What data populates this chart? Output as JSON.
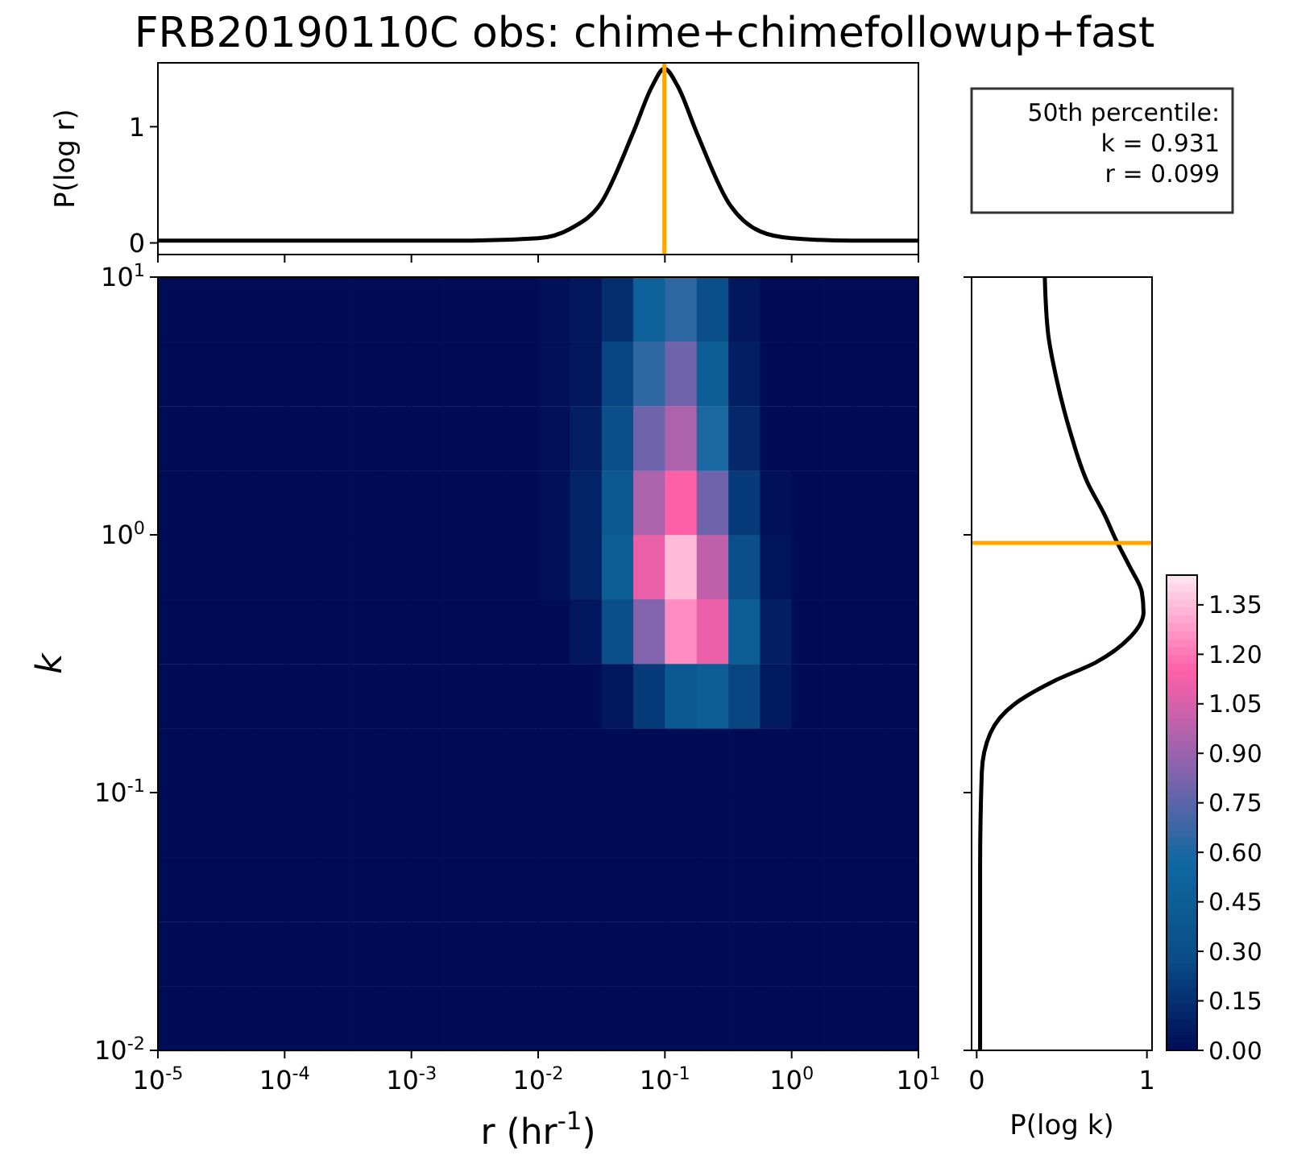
{
  "chart_data": [
    {
      "type": "line",
      "title": "FRB20190110C obs: chime+chimefollowup+fast",
      "ylabel": "P(log r)",
      "log": "x",
      "xlim": [
        1e-05,
        10
      ],
      "ylim": [
        -0.1,
        1.55
      ],
      "yticks": [
        0,
        1
      ],
      "xticks": [
        {
          "value": 1e-05,
          "label": null
        },
        {
          "value": 0.0001,
          "label": null
        },
        {
          "value": 0.001,
          "label": null
        },
        {
          "value": 0.01,
          "label": null
        },
        {
          "value": 0.1,
          "label": null
        },
        {
          "value": 1,
          "label": null
        },
        {
          "value": 10,
          "label": null
        }
      ],
      "tick_labels": "y",
      "x": [
        1e-05,
        0.0001,
        0.001,
        0.003,
        0.01,
        0.0178,
        0.0316,
        0.0562,
        0.0794,
        0.099,
        0.126,
        0.178,
        0.316,
        0.562,
        1,
        3,
        10
      ],
      "series": [
        {
          "color": "#000000",
          "values": [
            0.02,
            0.02,
            0.02,
            0.02,
            0.04,
            0.12,
            0.35,
            0.95,
            1.35,
            1.5,
            1.35,
            0.95,
            0.35,
            0.1,
            0.04,
            0.02,
            0.02
          ]
        }
      ],
      "ref_lines": [
        {
          "axis": "x",
          "value": 0.099,
          "color": "#ffa500"
        }
      ],
      "annotations": [
        "50th percentile:\nk = 0.931\nr = 0.099"
      ]
    },
    {
      "type": "scatter",
      "marker": "square",
      "xlabel": "r (hr$^{-1}$)",
      "ylabel": "k",
      "log": "xy",
      "xlim": [
        1e-05,
        10
      ],
      "ylim": [
        0.01,
        10
      ],
      "xticks": [
        {
          "value": 1e-05,
          "label": "10$^{-5}$"
        },
        {
          "value": 0.0001,
          "label": "10$^{-4}$"
        },
        {
          "value": 0.001,
          "label": "10$^{-3}$"
        },
        {
          "value": 0.01,
          "label": "10$^{-2}$"
        },
        {
          "value": 0.1,
          "label": "10$^{-1}$"
        },
        {
          "value": 1,
          "label": "10$^{0}$"
        },
        {
          "value": 10,
          "label": "10$^{1}$"
        }
      ],
      "yticks": [
        {
          "value": 0.01,
          "label": "10$^{-2}$"
        },
        {
          "value": 0.1,
          "label": "10$^{-1}$"
        },
        {
          "value": 1,
          "label": "10$^{0}$"
        },
        {
          "value": 10,
          "label": "10$^{1}$"
        }
      ],
      "x": [
        1.33e-05,
        2.37e-05,
        4.22e-05,
        7.5e-05,
        0.000133,
        0.000237,
        0.000422,
        0.00075,
        0.00133,
        0.00237,
        0.00422,
        0.0075,
        0.0133,
        0.0237,
        0.0422,
        0.075,
        0.133,
        0.237,
        0.422,
        0.75,
        1.33,
        2.37,
        4.22,
        7.5,
        1.33e-05,
        2.37e-05,
        4.22e-05,
        7.5e-05,
        0.000133,
        0.000237,
        0.000422,
        0.00075,
        0.00133,
        0.00237,
        0.00422,
        0.0075,
        0.0133,
        0.0237,
        0.0422,
        0.075,
        0.133,
        0.237,
        0.422,
        0.75,
        1.33,
        2.37,
        4.22,
        7.5,
        1.33e-05,
        2.37e-05,
        4.22e-05,
        7.5e-05,
        0.000133,
        0.000237,
        0.000422,
        0.00075,
        0.00133,
        0.00237,
        0.00422,
        0.0075,
        0.0133,
        0.0237,
        0.0422,
        0.075,
        0.133,
        0.237,
        0.422,
        0.75,
        1.33,
        2.37,
        4.22,
        7.5,
        1.33e-05,
        2.37e-05,
        4.22e-05,
        7.5e-05,
        0.000133,
        0.000237,
        0.000422,
        0.00075,
        0.00133,
        0.00237,
        0.00422,
        0.0075,
        0.0133,
        0.0237,
        0.0422,
        0.075,
        0.133,
        0.237,
        0.422,
        0.75,
        1.33,
        2.37,
        4.22,
        7.5,
        1.33e-05,
        2.37e-05,
        4.22e-05,
        7.5e-05,
        0.000133,
        0.000237,
        0.000422,
        0.00075,
        0.00133,
        0.00237,
        0.00422,
        0.0075,
        0.0133,
        0.0237,
        0.0422,
        0.075,
        0.133,
        0.237,
        0.422,
        0.75,
        1.33,
        2.37,
        4.22,
        7.5,
        1.33e-05,
        2.37e-05,
        4.22e-05,
        7.5e-05,
        0.000133,
        0.000237,
        0.000422,
        0.00075,
        0.00133,
        0.00237,
        0.00422,
        0.0075,
        0.0133,
        0.0237,
        0.0422,
        0.075,
        0.133,
        0.237,
        0.422,
        0.75,
        1.33,
        2.37,
        4.22,
        7.5,
        1.33e-05,
        2.37e-05,
        4.22e-05,
        7.5e-05,
        0.000133,
        0.000237,
        0.000422,
        0.00075,
        0.00133,
        0.00237,
        0.00422,
        0.0075,
        0.0133,
        0.0237,
        0.0422,
        0.075,
        0.133,
        0.237,
        0.422,
        0.75,
        1.33,
        2.37,
        4.22,
        7.5,
        1.33e-05,
        2.37e-05,
        4.22e-05,
        7.5e-05,
        0.000133,
        0.000237,
        0.000422,
        0.00075,
        0.00133,
        0.00237,
        0.00422,
        0.0075,
        0.0133,
        0.0237,
        0.0422,
        0.075,
        0.133,
        0.237,
        0.422,
        0.75,
        1.33,
        2.37,
        4.22,
        7.5,
        1.33e-05,
        2.37e-05,
        4.22e-05,
        7.5e-05,
        0.000133,
        0.000237,
        0.000422,
        0.00075,
        0.00133,
        0.00237,
        0.00422,
        0.0075,
        0.0133,
        0.0237,
        0.0422,
        0.075,
        0.133,
        0.237,
        0.422,
        0.75,
        1.33,
        2.37,
        4.22,
        7.5,
        1.33e-05,
        2.37e-05,
        4.22e-05,
        7.5e-05,
        0.000133,
        0.000237,
        0.000422,
        0.00075,
        0.00133,
        0.00237,
        0.00422,
        0.0075,
        0.0133,
        0.0237,
        0.0422,
        0.075,
        0.133,
        0.237,
        0.422,
        0.75,
        1.33,
        2.37,
        4.22,
        7.5,
        1.33e-05,
        2.37e-05,
        4.22e-05,
        7.5e-05,
        0.000133,
        0.000237,
        0.000422,
        0.00075,
        0.00133,
        0.00237,
        0.00422,
        0.0075,
        0.0133,
        0.0237,
        0.0422,
        0.075,
        0.133,
        0.237,
        0.422,
        0.75,
        1.33,
        2.37,
        4.22,
        7.5,
        1.33e-05,
        2.37e-05,
        4.22e-05,
        7.5e-05,
        0.000133,
        0.000237,
        0.000422,
        0.00075,
        0.00133,
        0.00237,
        0.00422,
        0.0075,
        0.0133,
        0.0237,
        0.0422,
        0.075,
        0.133,
        0.237,
        0.422,
        0.75,
        1.33,
        2.37,
        4.22,
        7.5
      ],
      "values": [
        7.5,
        7.5,
        7.5,
        7.5,
        7.5,
        7.5,
        7.5,
        7.5,
        7.5,
        7.5,
        7.5,
        7.5,
        7.5,
        7.5,
        7.5,
        7.5,
        7.5,
        7.5,
        7.5,
        7.5,
        7.5,
        7.5,
        7.5,
        7.5,
        4.22,
        4.22,
        4.22,
        4.22,
        4.22,
        4.22,
        4.22,
        4.22,
        4.22,
        4.22,
        4.22,
        4.22,
        4.22,
        4.22,
        4.22,
        4.22,
        4.22,
        4.22,
        4.22,
        4.22,
        4.22,
        4.22,
        4.22,
        4.22,
        2.37,
        2.37,
        2.37,
        2.37,
        2.37,
        2.37,
        2.37,
        2.37,
        2.37,
        2.37,
        2.37,
        2.37,
        2.37,
        2.37,
        2.37,
        2.37,
        2.37,
        2.37,
        2.37,
        2.37,
        2.37,
        2.37,
        2.37,
        2.37,
        1.33,
        1.33,
        1.33,
        1.33,
        1.33,
        1.33,
        1.33,
        1.33,
        1.33,
        1.33,
        1.33,
        1.33,
        1.33,
        1.33,
        1.33,
        1.33,
        1.33,
        1.33,
        1.33,
        1.33,
        1.33,
        1.33,
        1.33,
        1.33,
        0.75,
        0.75,
        0.75,
        0.75,
        0.75,
        0.75,
        0.75,
        0.75,
        0.75,
        0.75,
        0.75,
        0.75,
        0.75,
        0.75,
        0.75,
        0.75,
        0.75,
        0.75,
        0.75,
        0.75,
        0.75,
        0.75,
        0.75,
        0.75,
        0.422,
        0.422,
        0.422,
        0.422,
        0.422,
        0.422,
        0.422,
        0.422,
        0.422,
        0.422,
        0.422,
        0.422,
        0.422,
        0.422,
        0.422,
        0.422,
        0.422,
        0.422,
        0.422,
        0.422,
        0.422,
        0.422,
        0.422,
        0.422,
        0.237,
        0.237,
        0.237,
        0.237,
        0.237,
        0.237,
        0.237,
        0.237,
        0.237,
        0.237,
        0.237,
        0.237,
        0.237,
        0.237,
        0.237,
        0.237,
        0.237,
        0.237,
        0.237,
        0.237,
        0.237,
        0.237,
        0.237,
        0.237,
        0.133,
        0.133,
        0.133,
        0.133,
        0.133,
        0.133,
        0.133,
        0.133,
        0.133,
        0.133,
        0.133,
        0.133,
        0.133,
        0.133,
        0.133,
        0.133,
        0.133,
        0.133,
        0.133,
        0.133,
        0.133,
        0.133,
        0.133,
        0.133,
        0.075,
        0.075,
        0.075,
        0.075,
        0.075,
        0.075,
        0.075,
        0.075,
        0.075,
        0.075,
        0.075,
        0.075,
        0.075,
        0.075,
        0.075,
        0.075,
        0.075,
        0.075,
        0.075,
        0.075,
        0.075,
        0.075,
        0.075,
        0.075,
        0.0422,
        0.0422,
        0.0422,
        0.0422,
        0.0422,
        0.0422,
        0.0422,
        0.0422,
        0.0422,
        0.0422,
        0.0422,
        0.0422,
        0.0422,
        0.0422,
        0.0422,
        0.0422,
        0.0422,
        0.0422,
        0.0422,
        0.0422,
        0.0422,
        0.0422,
        0.0422,
        0.0422,
        0.0237,
        0.0237,
        0.0237,
        0.0237,
        0.0237,
        0.0237,
        0.0237,
        0.0237,
        0.0237,
        0.0237,
        0.0237,
        0.0237,
        0.0237,
        0.0237,
        0.0237,
        0.0237,
        0.0237,
        0.0237,
        0.0237,
        0.0237,
        0.0237,
        0.0237,
        0.0237,
        0.0237,
        0.0133,
        0.0133,
        0.0133,
        0.0133,
        0.0133,
        0.0133,
        0.0133,
        0.0133,
        0.0133,
        0.0133,
        0.0133,
        0.0133,
        0.0133,
        0.0133,
        0.0133,
        0.0133,
        0.0133,
        0.0133,
        0.0133,
        0.0133,
        0.0133,
        0.0133,
        0.0133,
        0.0133
      ],
      "cvalues": [
        0,
        0,
        0,
        0,
        0,
        0,
        0,
        0,
        0,
        0,
        0,
        0,
        0.02,
        0.05,
        0.15,
        0.5,
        0.65,
        0.3,
        0.05,
        0,
        0,
        0,
        0,
        0,
        0,
        0,
        0,
        0,
        0,
        0,
        0,
        0,
        0,
        0,
        0,
        0,
        0.02,
        0.05,
        0.25,
        0.65,
        0.8,
        0.45,
        0.08,
        0,
        0,
        0,
        0,
        0,
        0,
        0,
        0,
        0,
        0,
        0,
        0,
        0,
        0,
        0,
        0,
        0,
        0.02,
        0.08,
        0.3,
        0.8,
        0.95,
        0.6,
        0.12,
        0,
        0,
        0,
        0,
        0,
        0,
        0,
        0,
        0,
        0,
        0,
        0,
        0,
        0,
        0,
        0,
        0,
        0.02,
        0.1,
        0.4,
        0.95,
        1.15,
        0.8,
        0.2,
        0.02,
        0,
        0,
        0,
        0,
        0,
        0,
        0,
        0,
        0,
        0,
        0,
        0,
        0,
        0,
        0,
        0,
        0.02,
        0.1,
        0.45,
        1.1,
        1.35,
        1.0,
        0.3,
        0.04,
        0,
        0,
        0,
        0,
        0,
        0,
        0,
        0,
        0,
        0,
        0,
        0,
        0,
        0,
        0,
        0,
        0,
        0.05,
        0.3,
        0.85,
        1.25,
        1.1,
        0.45,
        0.08,
        0,
        0,
        0,
        0,
        0,
        0,
        0,
        0,
        0,
        0,
        0,
        0,
        0,
        0,
        0,
        0,
        0,
        0,
        0.05,
        0.2,
        0.4,
        0.45,
        0.25,
        0.06,
        0,
        0,
        0,
        0,
        0,
        0,
        0,
        0,
        0,
        0,
        0,
        0,
        0,
        0,
        0,
        0,
        0,
        0,
        0,
        0,
        0,
        0,
        0,
        0,
        0,
        0,
        0,
        0,
        0,
        0,
        0,
        0,
        0,
        0,
        0,
        0,
        0,
        0,
        0,
        0,
        0,
        0,
        0,
        0,
        0,
        0,
        0,
        0,
        0,
        0,
        0,
        0,
        0,
        0,
        0,
        0,
        0,
        0,
        0,
        0,
        0,
        0,
        0,
        0,
        0,
        0,
        0,
        0,
        0,
        0,
        0,
        0,
        0,
        0,
        0,
        0,
        0,
        0,
        0,
        0,
        0,
        0,
        0,
        0,
        0,
        0,
        0,
        0,
        0,
        0,
        0,
        0,
        0,
        0,
        0,
        0,
        0,
        0,
        0,
        0,
        0,
        0,
        0,
        0,
        0,
        0,
        0,
        0,
        0,
        0,
        0,
        0,
        0,
        0,
        0,
        0,
        0,
        0,
        0,
        0,
        0,
        0,
        0,
        0
      ],
      "clim": [
        0,
        1.44
      ],
      "cticks": [
        {
          "value": 0,
          "label": "0.00"
        },
        {
          "value": 0.15,
          "label": "0.15"
        },
        {
          "value": 0.3,
          "label": "0.30"
        },
        {
          "value": 0.45,
          "label": "0.45"
        },
        {
          "value": 0.6,
          "label": "0.60"
        },
        {
          "value": 0.75,
          "label": "0.75"
        },
        {
          "value": 0.9,
          "label": "0.90"
        },
        {
          "value": 1.05,
          "label": "1.05"
        },
        {
          "value": 1.2,
          "label": "1.20"
        },
        {
          "value": 1.35,
          "label": "1.35"
        }
      ]
    },
    {
      "type": "line",
      "xlabel": "P(log k)",
      "log": "y",
      "xlim": [
        -0.03,
        1.03
      ],
      "ylim": [
        0.01,
        10
      ],
      "xticks": [
        0,
        1
      ],
      "yticks": [
        {
          "value": 0.01,
          "label": null
        },
        {
          "value": 0.1,
          "label": null
        },
        {
          "value": 1,
          "label": null
        },
        {
          "value": 10,
          "label": null
        }
      ],
      "tick_labels": "x",
      "series": [
        {
          "color": "#000000",
          "x": [
            0.4,
            0.42,
            0.47,
            0.55,
            0.65,
            0.75,
            0.82,
            0.9,
            0.97,
            0.98,
            0.9,
            0.7,
            0.45,
            0.22,
            0.08,
            0.03,
            0.02,
            0.02
          ],
          "values": [
            10,
            6,
            4,
            2.5,
            1.6,
            1.2,
            0.95,
            0.75,
            0.6,
            0.5,
            0.4,
            0.32,
            0.27,
            0.22,
            0.17,
            0.12,
            0.05,
            0.01
          ]
        }
      ],
      "ref_lines": [
        {
          "axis": "y",
          "value": 0.931,
          "color": "#ffa500"
        }
      ]
    }
  ]
}
